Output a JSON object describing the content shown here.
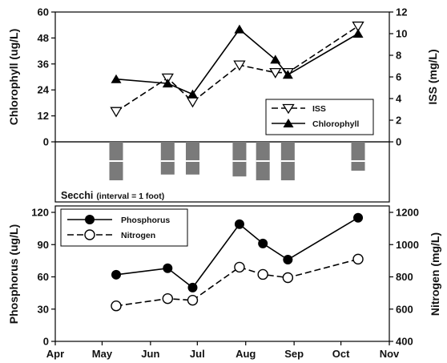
{
  "chart_data": [
    {
      "id": "top",
      "type": "line",
      "x_domain": [
        "Apr",
        "Nov"
      ],
      "left_axis": {
        "label": "Chlorophyll (ug/L)",
        "ylim": [
          0,
          60
        ],
        "ticks": [
          "0",
          "12",
          "24",
          "36",
          "48",
          "60"
        ]
      },
      "right_axis": {
        "label": "ISS (mg/L)",
        "ylim": [
          0,
          12
        ],
        "ticks": [
          "0",
          "2",
          "4",
          "6",
          "8",
          "10",
          "12"
        ]
      },
      "legend_position": "lower-right",
      "series": [
        {
          "name": "ISS",
          "axis": "right",
          "line": "dashed",
          "marker": "open-triangle-down",
          "x": [
            "May 10",
            "Jun 12",
            "Jun 28",
            "Jul 28",
            "Aug 20",
            "Aug 28",
            "Oct 12"
          ],
          "y": [
            2.8,
            5.9,
            3.7,
            7.1,
            6.4,
            6.4,
            10.7
          ]
        },
        {
          "name": "Chlorophyll",
          "axis": "left",
          "line": "solid",
          "marker": "filled-triangle-up",
          "x": [
            "May 10",
            "Jun 12",
            "Jun 28",
            "Jul 28",
            "Aug 20",
            "Aug 28",
            "Oct 12"
          ],
          "y": [
            29,
            27,
            22,
            52,
            38,
            31,
            50
          ]
        }
      ]
    },
    {
      "id": "secchi",
      "type": "bar",
      "title": "Secchi",
      "subtitle": "(interval = 1 foot)",
      "x": [
        "May 10",
        "Jun 12",
        "Jun 28",
        "Jul 28",
        "Aug 12",
        "Aug 28",
        "Oct 12"
      ],
      "depth_ft": [
        2,
        1.7,
        1.7,
        1.8,
        2,
        2,
        1.5
      ]
    },
    {
      "id": "bottom",
      "type": "line",
      "x_domain": [
        "Apr",
        "Nov"
      ],
      "xticks": [
        "Apr",
        "May",
        "Jun",
        "Jul",
        "Aug",
        "Sep",
        "Oct",
        "Nov"
      ],
      "left_axis": {
        "label": "Phosphorus (ug/L)",
        "ylim": [
          0,
          120
        ],
        "ticks": [
          "0",
          "30",
          "60",
          "90",
          "120"
        ]
      },
      "right_axis": {
        "label": "Nitrogen (mg/L)",
        "ylim": [
          400,
          1200
        ],
        "ticks": [
          "400",
          "600",
          "800",
          "1000",
          "1200"
        ]
      },
      "legend_position": "top-left",
      "series": [
        {
          "name": "Phosphorus",
          "axis": "left",
          "line": "solid",
          "marker": "filled-circle",
          "x": [
            "May 10",
            "Jun 12",
            "Jun 28",
            "Jul 28",
            "Aug 12",
            "Aug 28",
            "Oct 12"
          ],
          "y": [
            62,
            68,
            50,
            109,
            91,
            76,
            115
          ]
        },
        {
          "name": "Nitrogen",
          "axis": "right",
          "line": "dashed",
          "marker": "open-circle",
          "x": [
            "May 10",
            "Jun 12",
            "Jun 28",
            "Jul 28",
            "Aug 12",
            "Aug 28",
            "Oct 12"
          ],
          "y": [
            620,
            665,
            655,
            860,
            815,
            795,
            910
          ]
        }
      ]
    }
  ]
}
